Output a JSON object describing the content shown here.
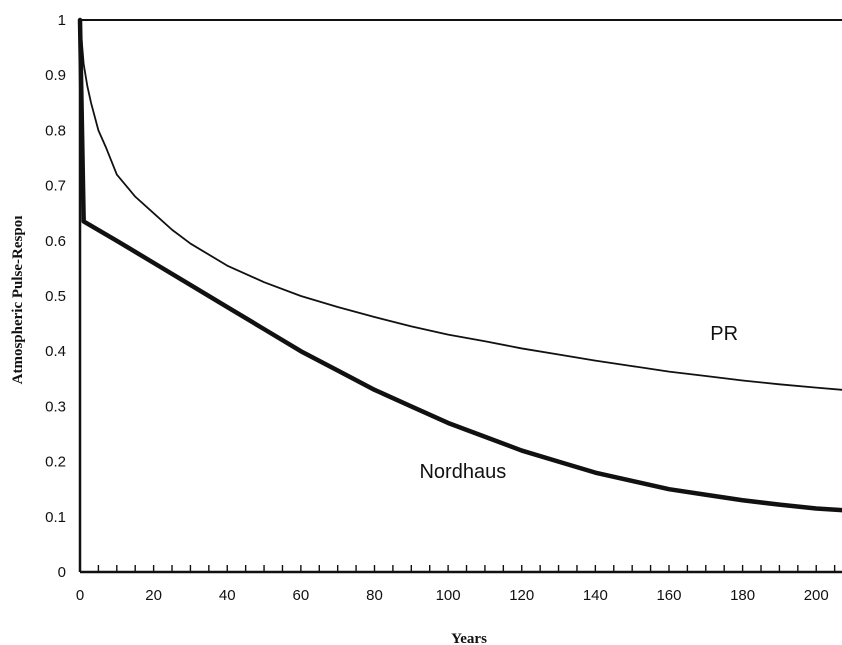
{
  "chart_data": {
    "type": "line",
    "title": "",
    "xlabel": "Years",
    "ylabel": "Atmospheric Pulse-Respoı",
    "xlim": [
      0,
      207
    ],
    "ylim": [
      0,
      1
    ],
    "x_ticks": [
      0,
      20,
      40,
      60,
      80,
      100,
      120,
      140,
      160,
      180,
      200
    ],
    "y_ticks": [
      0,
      0.1,
      0.2,
      0.3,
      0.4,
      0.5,
      0.6,
      0.7,
      0.8,
      0.9,
      1
    ],
    "x_tick_labels": [
      "0",
      "20",
      "40",
      "60",
      "80",
      "100",
      "120",
      "140",
      "160",
      "180",
      "200"
    ],
    "y_tick_labels": [
      "0",
      "0.1",
      "0.2",
      "0.3",
      "0.4",
      "0.5",
      "0.6",
      "0.7",
      "0.8",
      "0.9",
      "1"
    ],
    "x_minor_tick_step": 5,
    "grid": false,
    "legend": "none",
    "series": [
      {
        "name": "PR",
        "line_weight": "thin",
        "color": "#111111",
        "points": [
          [
            0,
            1.0
          ],
          [
            1,
            0.92
          ],
          [
            2,
            0.88
          ],
          [
            3,
            0.85
          ],
          [
            5,
            0.8
          ],
          [
            7,
            0.77
          ],
          [
            10,
            0.72
          ],
          [
            15,
            0.68
          ],
          [
            20,
            0.65
          ],
          [
            25,
            0.62
          ],
          [
            30,
            0.595
          ],
          [
            40,
            0.555
          ],
          [
            50,
            0.525
          ],
          [
            60,
            0.5
          ],
          [
            70,
            0.48
          ],
          [
            80,
            0.462
          ],
          [
            90,
            0.445
          ],
          [
            100,
            0.43
          ],
          [
            110,
            0.418
          ],
          [
            120,
            0.405
          ],
          [
            130,
            0.394
          ],
          [
            140,
            0.383
          ],
          [
            150,
            0.373
          ],
          [
            160,
            0.363
          ],
          [
            170,
            0.355
          ],
          [
            180,
            0.347
          ],
          [
            190,
            0.34
          ],
          [
            200,
            0.334
          ],
          [
            207,
            0.33
          ]
        ]
      },
      {
        "name": "Nordhaus",
        "line_weight": "thick",
        "color": "#111111",
        "points": [
          [
            0,
            1.0
          ],
          [
            1,
            0.635
          ],
          [
            10,
            0.6
          ],
          [
            20,
            0.56
          ],
          [
            30,
            0.52
          ],
          [
            40,
            0.48
          ],
          [
            50,
            0.44
          ],
          [
            60,
            0.4
          ],
          [
            70,
            0.365
          ],
          [
            80,
            0.33
          ],
          [
            90,
            0.3
          ],
          [
            100,
            0.27
          ],
          [
            110,
            0.245
          ],
          [
            120,
            0.22
          ],
          [
            130,
            0.2
          ],
          [
            140,
            0.18
          ],
          [
            150,
            0.165
          ],
          [
            160,
            0.15
          ],
          [
            170,
            0.14
          ],
          [
            180,
            0.13
          ],
          [
            190,
            0.122
          ],
          [
            200,
            0.115
          ],
          [
            207,
            0.112
          ]
        ]
      }
    ],
    "annotations": [
      {
        "text": "PR",
        "x": 175,
        "y": 0.42
      },
      {
        "text": "Nordhaus",
        "x": 104,
        "y": 0.17
      }
    ]
  }
}
